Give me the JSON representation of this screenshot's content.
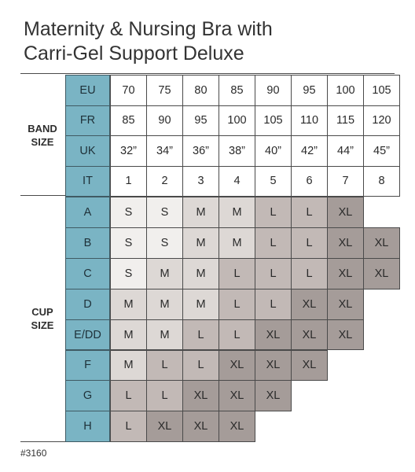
{
  "title_line1": "Maternity & Nursing Bra with",
  "title_line2": "Carri-Gel Support Deluxe",
  "band_section": {
    "label_line1": "BAND",
    "label_line2": "SIZE",
    "rows": [
      {
        "system": "EU",
        "values": [
          "70",
          "75",
          "80",
          "85",
          "90",
          "95",
          "100",
          "105"
        ]
      },
      {
        "system": "FR",
        "values": [
          "85",
          "90",
          "95",
          "100",
          "105",
          "110",
          "115",
          "120"
        ]
      },
      {
        "system": "UK",
        "values": [
          "32”",
          "34”",
          "36”",
          "38”",
          "40”",
          "42”",
          "44”",
          "45”"
        ]
      },
      {
        "system": "IT",
        "values": [
          "1",
          "2",
          "3",
          "4",
          "5",
          "6",
          "7",
          "8"
        ]
      }
    ]
  },
  "cup_section": {
    "label_line1": "CUP",
    "label_line2": "SIZE",
    "rows": [
      {
        "cup": "A",
        "sizes": [
          "S",
          "S",
          "M",
          "M",
          "L",
          "L",
          "XL"
        ]
      },
      {
        "cup": "B",
        "sizes": [
          "S",
          "S",
          "M",
          "M",
          "L",
          "L",
          "XL",
          "XL"
        ]
      },
      {
        "cup": "C",
        "sizes": [
          "S",
          "M",
          "M",
          "L",
          "L",
          "L",
          "XL",
          "XL"
        ]
      },
      {
        "cup": "D",
        "sizes": [
          "M",
          "M",
          "M",
          "L",
          "L",
          "XL",
          "XL"
        ]
      },
      {
        "cup": "E/DD",
        "sizes": [
          "M",
          "M",
          "L",
          "L",
          "XL",
          "XL",
          "XL"
        ]
      },
      {
        "cup": "F",
        "sizes": [
          "M",
          "L",
          "L",
          "XL",
          "XL",
          "XL"
        ]
      },
      {
        "cup": "G",
        "sizes": [
          "L",
          "L",
          "XL",
          "XL",
          "XL"
        ]
      },
      {
        "cup": "H",
        "sizes": [
          "L",
          "XL",
          "XL",
          "XL"
        ]
      }
    ]
  },
  "size_colors": {
    "S": "#f1efed",
    "M": "#ddd8d5",
    "L": "#c2b9b6",
    "XL": "#a59c99"
  },
  "header_color": "#7ab4c4",
  "product_code": "#3160"
}
